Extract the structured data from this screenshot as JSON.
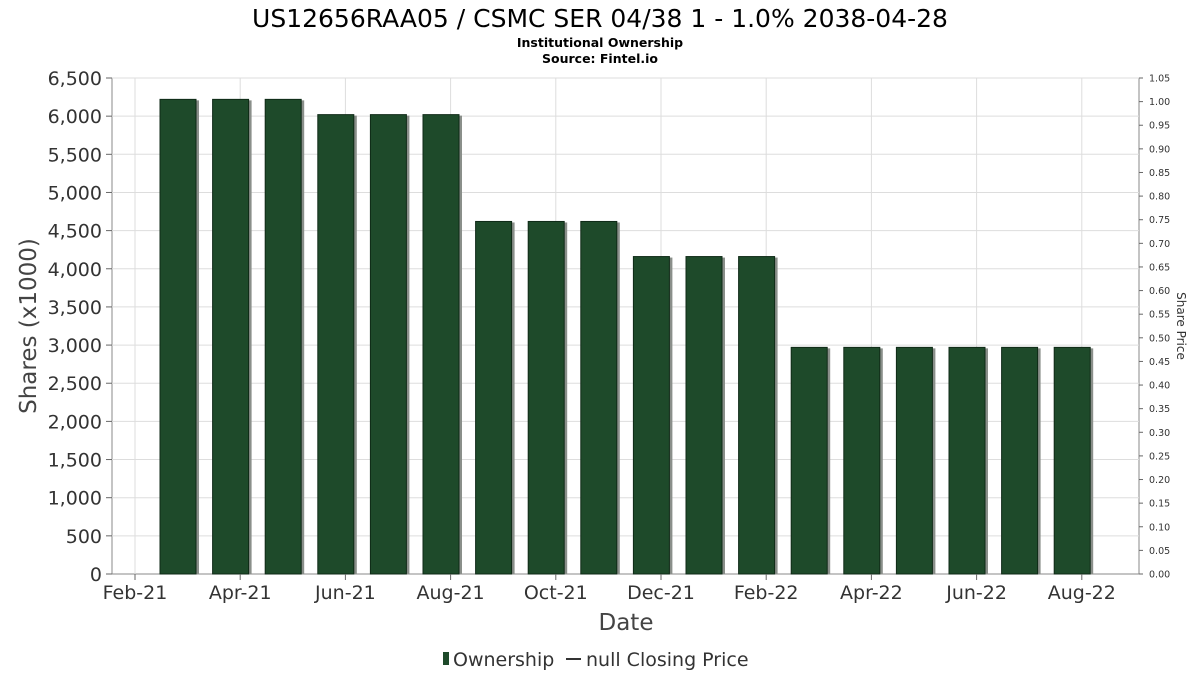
{
  "chart_data": {
    "type": "bar",
    "title": "US12656RAA05 / CSMC SER 04/38 1 - 1.0% 2038-04-28",
    "subtitle_lines": [
      "Institutional Ownership",
      "Source: Fintel.io"
    ],
    "xlabel": "Date",
    "ylabel": "Shares (x1000)",
    "y2label": "Share Price",
    "ylim": [
      0,
      6500
    ],
    "y2lim": [
      0,
      1.05
    ],
    "yticks": [
      "0",
      "500",
      "1,000",
      "1,500",
      "2,000",
      "2,500",
      "3,000",
      "3,500",
      "4,000",
      "4,500",
      "5,000",
      "5,500",
      "6,000",
      "6,500"
    ],
    "y2ticks": [
      "0.00",
      "0.05",
      "0.10",
      "0.15",
      "0.20",
      "0.25",
      "0.30",
      "0.35",
      "0.40",
      "0.45",
      "0.50",
      "0.55",
      "0.60",
      "0.65",
      "0.70",
      "0.75",
      "0.80",
      "0.85",
      "0.90",
      "0.95",
      "1.00",
      "1.05"
    ],
    "xticks": [
      "Feb-21",
      "Apr-21",
      "Jun-21",
      "Aug-21",
      "Oct-21",
      "Dec-21",
      "Feb-22",
      "Apr-22",
      "Jun-22",
      "Aug-22"
    ],
    "grid": true,
    "bar_color": "#1e4a2a",
    "series": [
      {
        "name": "Ownership",
        "values": [
          6220,
          6220,
          6220,
          6020,
          6020,
          6020,
          4620,
          4620,
          4620,
          4160,
          4160,
          4160,
          2970,
          2970,
          2970,
          2970,
          2970,
          2970
        ]
      }
    ],
    "legend": [
      "Ownership",
      "null Closing Price"
    ],
    "legend_position": "bottom"
  }
}
